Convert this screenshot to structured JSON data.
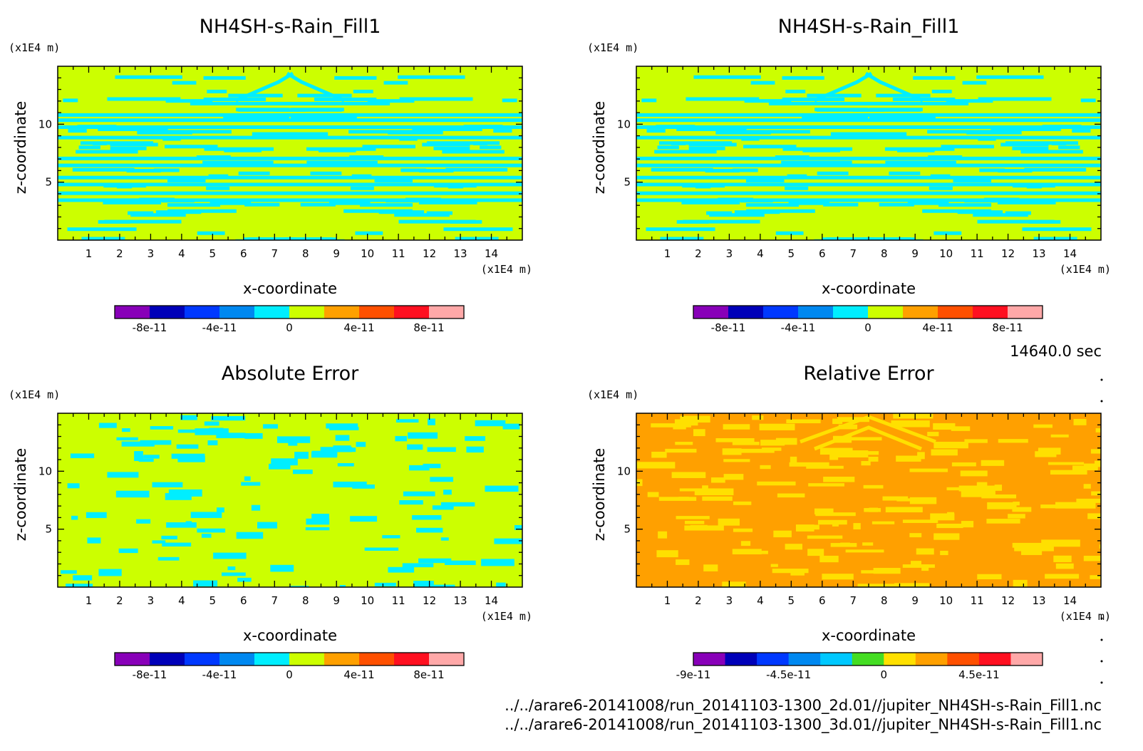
{
  "chart_data": [
    {
      "type": "heatmap",
      "title": "NH4SH-s-Rain_Fill1",
      "xlabel": "x-coordinate",
      "ylabel": "z-coordinate",
      "x_unit": "(x1E4 m)",
      "y_unit": "(x1E4 m)",
      "x_ticks": [
        "1",
        "2",
        "3",
        "4",
        "5",
        "6",
        "7",
        "8",
        "9",
        "10",
        "11",
        "12",
        "13",
        "14"
      ],
      "y_ticks": [
        "5",
        "10"
      ],
      "xlim": [
        0,
        15
      ],
      "ylim": [
        0,
        15
      ],
      "dominant_level": "-1e-11 to 1e-11",
      "secondary_level": "-3e-11 to -1e-11",
      "colorbar": {
        "colors": [
          "#8800b8",
          "#0000b8",
          "#0038ff",
          "#0088f0",
          "#00eeff",
          "#ccff00",
          "#ffa000",
          "#ff5000",
          "#ff1020",
          "#ffa8a8"
        ],
        "labels": [
          "-8e-11",
          "-4e-11",
          "0",
          "4e-11",
          "8e-11"
        ]
      }
    },
    {
      "type": "heatmap",
      "title": "NH4SH-s-Rain_Fill1",
      "xlabel": "x-coordinate",
      "ylabel": "z-coordinate",
      "x_unit": "(x1E4 m)",
      "y_unit": "(x1E4 m)",
      "x_ticks": [
        "1",
        "2",
        "3",
        "4",
        "5",
        "6",
        "7",
        "8",
        "9",
        "10",
        "11",
        "12",
        "13",
        "14"
      ],
      "y_ticks": [
        "5",
        "10"
      ],
      "xlim": [
        0,
        15
      ],
      "ylim": [
        0,
        15
      ],
      "dominant_level": "-1e-11 to 1e-11",
      "secondary_level": "-3e-11 to -1e-11",
      "colorbar": {
        "colors": [
          "#8800b8",
          "#0000b8",
          "#0038ff",
          "#0088f0",
          "#00eeff",
          "#ccff00",
          "#ffa000",
          "#ff5000",
          "#ff1020",
          "#ffa8a8"
        ],
        "labels": [
          "-8e-11",
          "-4e-11",
          "0",
          "4e-11",
          "8e-11"
        ]
      }
    },
    {
      "type": "heatmap",
      "title": "Absolute Error",
      "xlabel": "x-coordinate",
      "ylabel": "z-coordinate",
      "x_unit": "(x1E4 m)",
      "y_unit": "(x1E4 m)",
      "x_ticks": [
        "1",
        "2",
        "3",
        "4",
        "5",
        "6",
        "7",
        "8",
        "9",
        "10",
        "11",
        "12",
        "13",
        "14"
      ],
      "y_ticks": [
        "5",
        "10"
      ],
      "xlim": [
        0,
        15
      ],
      "ylim": [
        0,
        15
      ],
      "dominant_level": "-1e-11 to 1e-11",
      "secondary_level": "-3e-11 to -1e-11",
      "colorbar": {
        "colors": [
          "#8800b8",
          "#0000b8",
          "#0038ff",
          "#0088f0",
          "#00eeff",
          "#ccff00",
          "#ffa000",
          "#ff5000",
          "#ff1020",
          "#ffa8a8"
        ],
        "labels": [
          "-8e-11",
          "-4e-11",
          "0",
          "4e-11",
          "8e-11"
        ]
      }
    },
    {
      "type": "heatmap",
      "title": "Relative Error",
      "xlabel": "x-coordinate",
      "ylabel": "z-coordinate",
      "x_unit": "(x1E4 m)",
      "y_unit": "(x1E4 m)",
      "x_ticks": [
        "1",
        "2",
        "3",
        "4",
        "5",
        "6",
        "7",
        "8",
        "9",
        "10",
        "11",
        "12",
        "13",
        "14"
      ],
      "y_ticks": [
        "5",
        "10"
      ],
      "xlim": [
        0,
        15
      ],
      "ylim": [
        0,
        15
      ],
      "dominant_level": "0 to 9e-12",
      "secondary_level": "-9e-12 to 0",
      "colorbar": {
        "colors": [
          "#8800b8",
          "#0000b8",
          "#0038ff",
          "#0088f0",
          "#00c8ff",
          "#44dd22",
          "#ffe000",
          "#ffa000",
          "#ff5000",
          "#ff1020",
          "#ffa8a8"
        ],
        "labels": [
          "-9e-11",
          "-4.5e-11",
          "0",
          "4.5e-11"
        ]
      }
    }
  ],
  "time_label": "14640.0 sec",
  "files": [
    "../../arare6-20141008/run_20141103-1300_2d.01//jupiter_NH4SH-s-Rain_Fill1.nc",
    "../../arare6-20141008/run_20141103-1300_3d.01//jupiter_NH4SH-s-Rain_Fill1.nc"
  ]
}
